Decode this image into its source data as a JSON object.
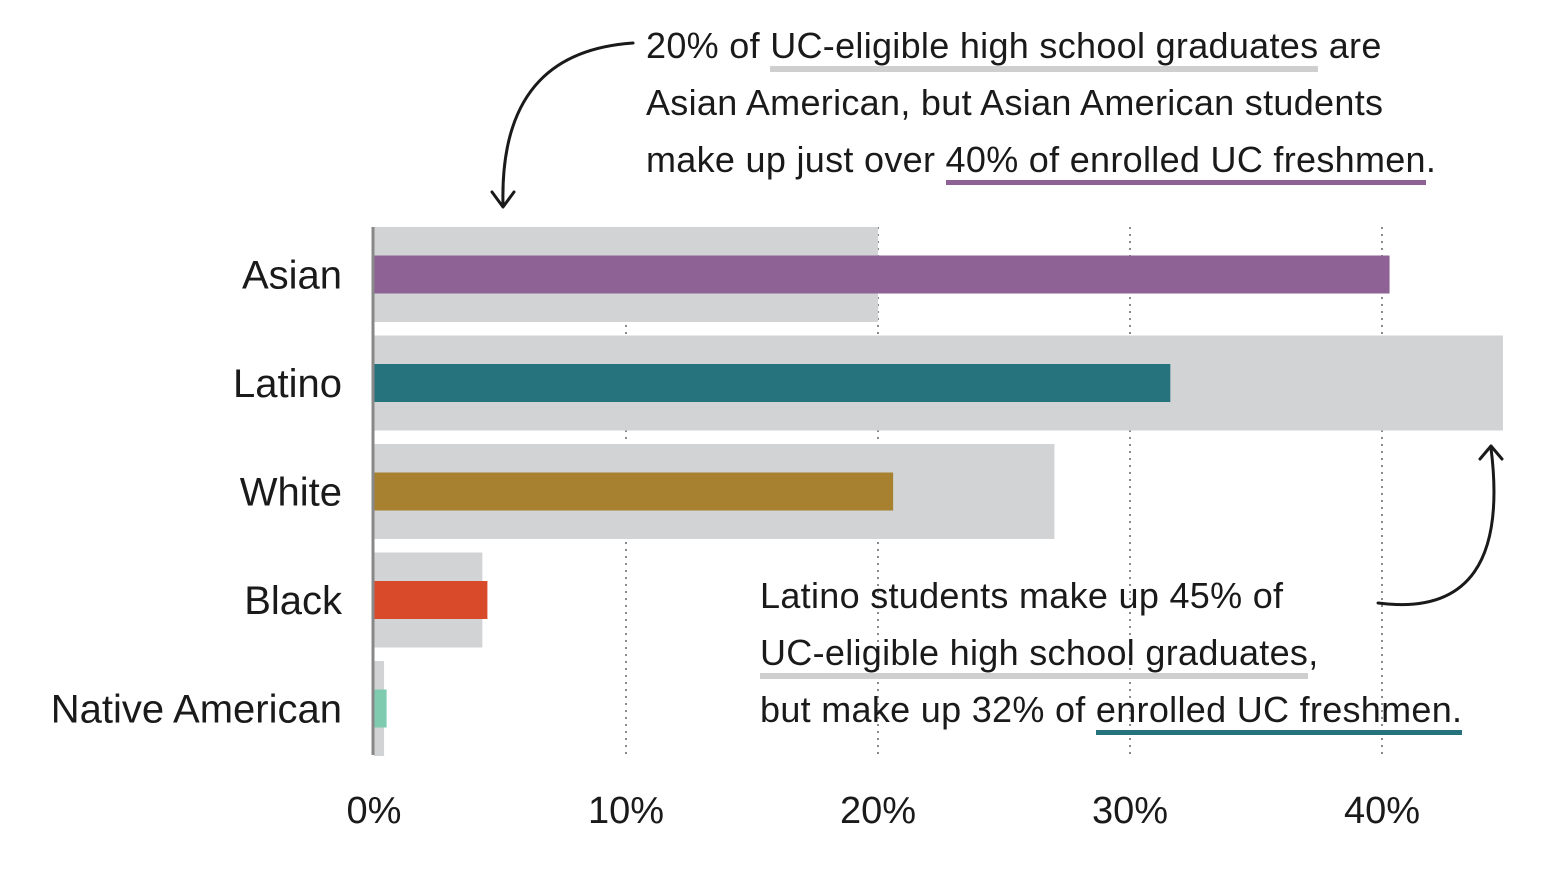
{
  "chart_data": {
    "type": "bar",
    "orientation": "horizontal",
    "categories": [
      "Asian",
      "Latino",
      "White",
      "Black",
      "Native American"
    ],
    "series": [
      {
        "role": "background",
        "color": "#d2d3d5",
        "values": [
          20,
          44.8,
          27,
          4.3,
          0.4
        ]
      },
      {
        "role": "foreground",
        "colors": [
          "#8f6296",
          "#26727d",
          "#a88130",
          "#d94a2b",
          "#7ecbb0"
        ],
        "values": [
          40.3,
          31.6,
          20.6,
          4.5,
          0.5
        ]
      }
    ],
    "xlim": [
      0,
      45
    ],
    "xticks": [
      0,
      10,
      20,
      30,
      40
    ],
    "xtick_labels": [
      "0%",
      "10%",
      "20%",
      "30%",
      "40%"
    ],
    "grid": "vertical dotted"
  },
  "annotations": {
    "top": {
      "line1_pre": "20% of ",
      "line1_ul": "UC-eligible high school graduates",
      "line1_post": " are",
      "line2": "Asian American, but Asian American students",
      "line3_pre": "make up just over ",
      "line3_ul": "40% of enrolled UC freshmen",
      "line3_post": "."
    },
    "bottom": {
      "line1": "Latino students make up 45% of",
      "line2_ul": "UC-eligible high school graduates",
      "line2_post": ",",
      "line3_pre": "but make up 32% of ",
      "line3_ul": "enrolled UC freshmen."
    }
  }
}
